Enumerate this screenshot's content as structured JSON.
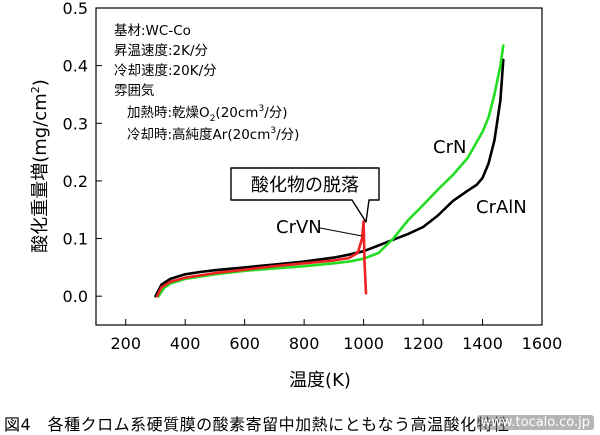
{
  "chart_data": {
    "type": "line",
    "xlabel": "温度(K)",
    "ylabel_parts": [
      "酸化重量増(mg/cm",
      "2",
      ")"
    ],
    "xlim": [
      100,
      1600
    ],
    "ylim": [
      -0.05,
      0.5
    ],
    "x_ticks": [
      200,
      400,
      600,
      800,
      1000,
      1200,
      1400,
      1600
    ],
    "y_ticks": [
      0.0,
      0.1,
      0.2,
      0.3,
      0.4,
      0.5
    ],
    "grid": false,
    "legend": "none",
    "series": [
      {
        "name": "CrAlN",
        "color": "#000000",
        "x": [
          300,
          320,
          350,
          400,
          450,
          500,
          600,
          700,
          800,
          900,
          950,
          1000,
          1050,
          1100,
          1150,
          1200,
          1250,
          1300,
          1350,
          1380,
          1400,
          1420,
          1440,
          1460,
          1470
        ],
        "y": [
          0.0,
          0.02,
          0.03,
          0.038,
          0.042,
          0.045,
          0.05,
          0.055,
          0.06,
          0.067,
          0.072,
          0.078,
          0.088,
          0.098,
          0.108,
          0.12,
          0.14,
          0.165,
          0.183,
          0.193,
          0.205,
          0.23,
          0.27,
          0.34,
          0.41
        ]
      },
      {
        "name": "CrN",
        "color": "#22dd22",
        "x": [
          310,
          330,
          350,
          400,
          500,
          600,
          700,
          800,
          900,
          950,
          1000,
          1050,
          1100,
          1150,
          1200,
          1250,
          1300,
          1350,
          1400,
          1420,
          1440,
          1460,
          1470
        ],
        "y": [
          0.0,
          0.015,
          0.022,
          0.03,
          0.038,
          0.044,
          0.048,
          0.052,
          0.057,
          0.06,
          0.065,
          0.075,
          0.1,
          0.132,
          0.158,
          0.185,
          0.21,
          0.24,
          0.285,
          0.31,
          0.35,
          0.4,
          0.435
        ]
      },
      {
        "name": "CrVN",
        "color": "#ee2222",
        "x": [
          305,
          320,
          350,
          400,
          500,
          600,
          700,
          800,
          900,
          950,
          980,
          995,
          1000,
          1003,
          1008
        ],
        "y": [
          0.0,
          0.015,
          0.025,
          0.032,
          0.04,
          0.046,
          0.052,
          0.057,
          0.062,
          0.066,
          0.075,
          0.1,
          0.13,
          0.06,
          0.005
        ]
      }
    ],
    "annotations": {
      "crn": "CrN",
      "craln": "CrAlN",
      "crvn": "CrVN",
      "callout": "酸化物の脱落"
    },
    "conditions": {
      "substrate": "基材:WC-Co",
      "heat_rate": "昇温速度:2K/分",
      "cool_rate": "冷却速度:20K/分",
      "atmosphere": "雰囲気",
      "heating_parts": [
        "加熱時:乾燥O",
        "2",
        "(20cm",
        "3",
        "/分)"
      ],
      "cooling_parts": [
        "冷却時:高純度Ar(20cm",
        "3",
        "/分)"
      ]
    }
  },
  "caption": "図4　各種クロム系硬質膜の酸素寄留中加熱にともなう高温酸化特性",
  "watermark": "www.tocalo.co.jp"
}
